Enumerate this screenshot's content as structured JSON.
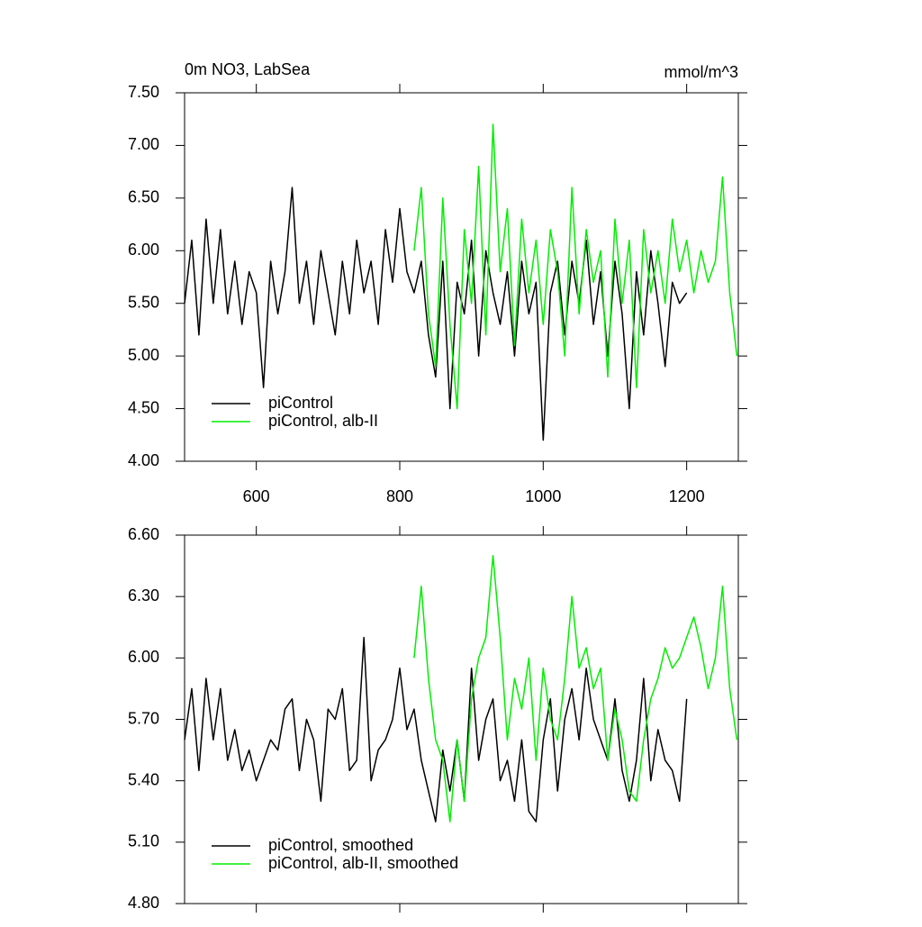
{
  "chart_data": [
    {
      "type": "line",
      "title": "0m NO3, LabSea",
      "units": "mmol/m^3",
      "x": [
        500,
        510,
        520,
        530,
        540,
        550,
        560,
        570,
        580,
        590,
        600,
        610,
        620,
        630,
        640,
        650,
        660,
        670,
        680,
        690,
        700,
        710,
        720,
        730,
        740,
        750,
        760,
        770,
        780,
        790,
        800,
        810,
        820,
        830,
        840,
        850,
        860,
        870,
        880,
        890,
        900,
        910,
        920,
        930,
        940,
        950,
        960,
        970,
        980,
        990,
        1000,
        1010,
        1020,
        1030,
        1040,
        1050,
        1060,
        1070,
        1080,
        1090,
        1100,
        1110,
        1120,
        1130,
        1140,
        1150,
        1160,
        1170,
        1180,
        1190,
        1200,
        1210,
        1220,
        1230,
        1240,
        1250,
        1260,
        1270
      ],
      "series": [
        {
          "name": "piControl",
          "color": "#000000",
          "values": [
            5.5,
            6.1,
            5.2,
            6.3,
            5.5,
            6.2,
            5.4,
            5.9,
            5.3,
            5.8,
            5.6,
            4.7,
            5.9,
            5.4,
            5.8,
            6.6,
            5.5,
            5.9,
            5.3,
            6.0,
            5.6,
            5.2,
            5.9,
            5.4,
            6.1,
            5.6,
            5.9,
            5.3,
            6.2,
            5.7,
            6.4,
            5.8,
            5.6,
            5.9,
            5.2,
            4.8,
            5.9,
            4.5,
            5.7,
            5.4,
            6.1,
            5.0,
            6.0,
            5.6,
            5.3,
            5.8,
            5.0,
            5.9,
            5.4,
            5.7,
            4.2,
            5.6,
            5.9,
            5.2,
            5.9,
            5.5,
            6.1,
            5.3,
            5.8,
            5.0,
            5.9,
            5.4,
            4.5,
            5.8,
            5.2,
            6.0,
            5.5,
            4.9,
            5.7,
            5.5,
            5.6,
            null,
            null,
            null,
            null,
            null,
            null,
            null
          ]
        },
        {
          "name": "piControl, alb-II",
          "color": "#00ee00",
          "values": [
            null,
            null,
            null,
            null,
            null,
            null,
            null,
            null,
            null,
            null,
            null,
            null,
            null,
            null,
            null,
            null,
            null,
            null,
            null,
            null,
            null,
            null,
            null,
            null,
            null,
            null,
            null,
            null,
            null,
            null,
            null,
            null,
            6.0,
            6.6,
            5.4,
            4.9,
            6.5,
            5.3,
            4.5,
            6.2,
            5.5,
            6.8,
            5.2,
            7.2,
            5.8,
            6.4,
            5.1,
            6.3,
            5.6,
            6.1,
            5.3,
            6.2,
            5.8,
            5.0,
            6.6,
            5.4,
            6.2,
            5.7,
            6.0,
            4.8,
            6.3,
            5.5,
            6.1,
            4.7,
            6.2,
            5.6,
            6.0,
            5.5,
            6.3,
            5.8,
            6.1,
            5.6,
            6.0,
            5.7,
            5.9,
            6.7,
            5.6,
            5.0
          ]
        }
      ],
      "xlim": [
        500,
        1272
      ],
      "xticks": [
        600,
        800,
        1000,
        1200
      ],
      "xtick_labels": true,
      "ylim": [
        4,
        7.5
      ],
      "yticks": [
        {
          "value": 4,
          "label": "4.00"
        },
        {
          "value": 4.5,
          "label": "4.50"
        },
        {
          "value": 5,
          "label": "5.00"
        },
        {
          "value": 5.5,
          "label": "5.50"
        },
        {
          "value": 6,
          "label": "6.00"
        },
        {
          "value": 6.5,
          "label": "6.50"
        },
        {
          "value": 7,
          "label": "7.00"
        },
        {
          "value": 7.5,
          "label": "7.50"
        }
      ],
      "legend": "lower left",
      "grid": false
    },
    {
      "type": "line",
      "x": [
        500,
        510,
        520,
        530,
        540,
        550,
        560,
        570,
        580,
        590,
        600,
        610,
        620,
        630,
        640,
        650,
        660,
        670,
        680,
        690,
        700,
        710,
        720,
        730,
        740,
        750,
        760,
        770,
        780,
        790,
        800,
        810,
        820,
        830,
        840,
        850,
        860,
        870,
        880,
        890,
        900,
        910,
        920,
        930,
        940,
        950,
        960,
        970,
        980,
        990,
        1000,
        1010,
        1020,
        1030,
        1040,
        1050,
        1060,
        1070,
        1080,
        1090,
        1100,
        1110,
        1120,
        1130,
        1140,
        1150,
        1160,
        1170,
        1180,
        1190,
        1200,
        1210,
        1220,
        1230,
        1240,
        1250,
        1260,
        1270
      ],
      "series": [
        {
          "name": "piControl, smoothed",
          "color": "#000000",
          "values": [
            5.6,
            5.85,
            5.45,
            5.9,
            5.6,
            5.85,
            5.5,
            5.65,
            5.45,
            5.55,
            5.4,
            5.5,
            5.6,
            5.55,
            5.75,
            5.8,
            5.45,
            5.7,
            5.6,
            5.3,
            5.75,
            5.7,
            5.85,
            5.45,
            5.5,
            6.1,
            5.4,
            5.55,
            5.6,
            5.7,
            5.95,
            5.65,
            5.75,
            5.5,
            5.35,
            5.2,
            5.55,
            5.35,
            5.6,
            5.3,
            5.95,
            5.5,
            5.7,
            5.8,
            5.4,
            5.5,
            5.3,
            5.6,
            5.25,
            5.2,
            5.6,
            5.8,
            5.35,
            5.7,
            5.85,
            5.6,
            5.95,
            5.7,
            5.6,
            5.5,
            5.8,
            5.45,
            5.3,
            5.5,
            5.9,
            5.4,
            5.65,
            5.5,
            5.45,
            5.3,
            5.8,
            null,
            null,
            null,
            null,
            null,
            null,
            null
          ]
        },
        {
          "name": "piControl, alb-II, smoothed",
          "color": "#00ee00",
          "values": [
            null,
            null,
            null,
            null,
            null,
            null,
            null,
            null,
            null,
            null,
            null,
            null,
            null,
            null,
            null,
            null,
            null,
            null,
            null,
            null,
            null,
            null,
            null,
            null,
            null,
            null,
            null,
            null,
            null,
            null,
            null,
            null,
            6.0,
            6.35,
            5.9,
            5.6,
            5.5,
            5.2,
            5.6,
            5.3,
            5.8,
            6.0,
            6.1,
            6.5,
            6.1,
            5.6,
            5.9,
            5.75,
            6.0,
            5.5,
            5.95,
            5.7,
            5.6,
            5.9,
            6.3,
            5.95,
            6.05,
            5.85,
            5.95,
            5.5,
            5.75,
            5.6,
            5.35,
            5.3,
            5.6,
            5.8,
            5.9,
            6.05,
            5.95,
            6.0,
            6.1,
            6.2,
            6.05,
            5.85,
            6.0,
            6.35,
            5.85,
            5.6
          ]
        }
      ],
      "xlim": [
        500,
        1272
      ],
      "xticks": [
        600,
        800,
        1000,
        1200
      ],
      "xtick_labels": false,
      "ylim": [
        4.8,
        6.6
      ],
      "yticks": [
        {
          "value": 4.8,
          "label": "4.80"
        },
        {
          "value": 5.1,
          "label": "5.10"
        },
        {
          "value": 5.4,
          "label": "5.40"
        },
        {
          "value": 5.7,
          "label": "5.70"
        },
        {
          "value": 6,
          "label": "6.00"
        },
        {
          "value": 6.3,
          "label": "6.30"
        },
        {
          "value": 6.6,
          "label": "6.60"
        }
      ],
      "legend": "lower left",
      "grid": false
    }
  ]
}
